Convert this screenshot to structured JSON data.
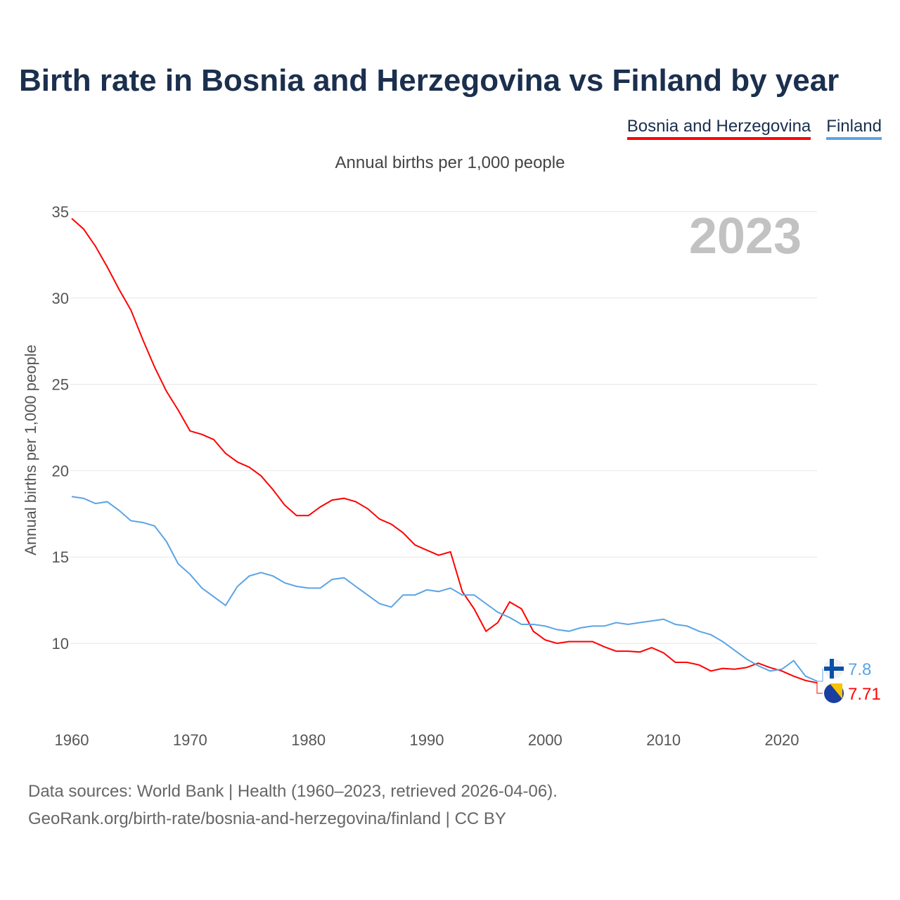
{
  "title": "Birth rate in Bosnia and Herzegovina vs Finland by year",
  "legend": [
    {
      "label": "Bosnia and Herzegovina",
      "color": "#ff0000"
    },
    {
      "label": "Finland",
      "color": "#5ba4e6"
    }
  ],
  "subtitle": "Annual births per 1,000 people",
  "footer": {
    "line1": "Data sources: World Bank | Health (1960–2023, retrieved 2026-04-06).",
    "line2": "GeoRank.org/birth-rate/bosnia-and-herzegovina/finland | CC BY"
  },
  "chart_data": {
    "type": "line",
    "title": "Birth rate in Bosnia and Herzegovina vs Finland by year",
    "ylabel": "Annual births per 1,000 people",
    "xlabel": "",
    "year_label": "2023",
    "xlim": [
      1960,
      2023
    ],
    "ylim": [
      7,
      35
    ],
    "yticks": [
      10,
      15,
      20,
      25,
      30,
      35
    ],
    "xticks": [
      1960,
      1970,
      1980,
      1990,
      2000,
      2010,
      2020
    ],
    "grid": true,
    "x_start": 1960,
    "series": [
      {
        "name": "Bosnia and Herzegovina",
        "color": "#ff0000",
        "end_label": "7.71",
        "values": [
          34.6,
          34.0,
          33.0,
          31.8,
          30.5,
          29.3,
          27.6,
          26.0,
          24.6,
          23.5,
          22.3,
          22.1,
          21.8,
          21.0,
          20.5,
          20.2,
          19.7,
          18.9,
          18.0,
          17.4,
          17.4,
          17.9,
          18.3,
          18.4,
          18.2,
          17.8,
          17.2,
          16.9,
          16.4,
          15.7,
          15.4,
          15.1,
          15.3,
          13.0,
          12.0,
          10.7,
          11.2,
          12.4,
          12.0,
          10.7,
          10.2,
          10.0,
          10.1,
          10.1,
          10.1,
          9.8,
          9.55,
          9.55,
          9.5,
          9.75,
          9.45,
          8.9,
          8.9,
          8.75,
          8.4,
          8.55,
          8.5,
          8.6,
          8.85,
          8.6,
          8.4,
          8.1,
          7.85,
          7.71
        ]
      },
      {
        "name": "Finland",
        "color": "#5ba4e6",
        "end_label": "7.8",
        "values": [
          18.5,
          18.4,
          18.1,
          18.2,
          17.7,
          17.1,
          17.0,
          16.8,
          15.9,
          14.6,
          14.0,
          13.2,
          12.7,
          12.2,
          13.3,
          13.9,
          14.1,
          13.9,
          13.5,
          13.3,
          13.2,
          13.2,
          13.7,
          13.8,
          13.3,
          12.8,
          12.3,
          12.1,
          12.8,
          12.8,
          13.1,
          13.0,
          13.2,
          12.8,
          12.8,
          12.3,
          11.8,
          11.5,
          11.1,
          11.1,
          11.0,
          10.8,
          10.7,
          10.9,
          11.0,
          11.0,
          11.2,
          11.1,
          11.2,
          11.3,
          11.4,
          11.1,
          11.0,
          10.7,
          10.5,
          10.1,
          9.6,
          9.1,
          8.7,
          8.4,
          8.5,
          9.0,
          8.1,
          7.8
        ]
      }
    ]
  }
}
